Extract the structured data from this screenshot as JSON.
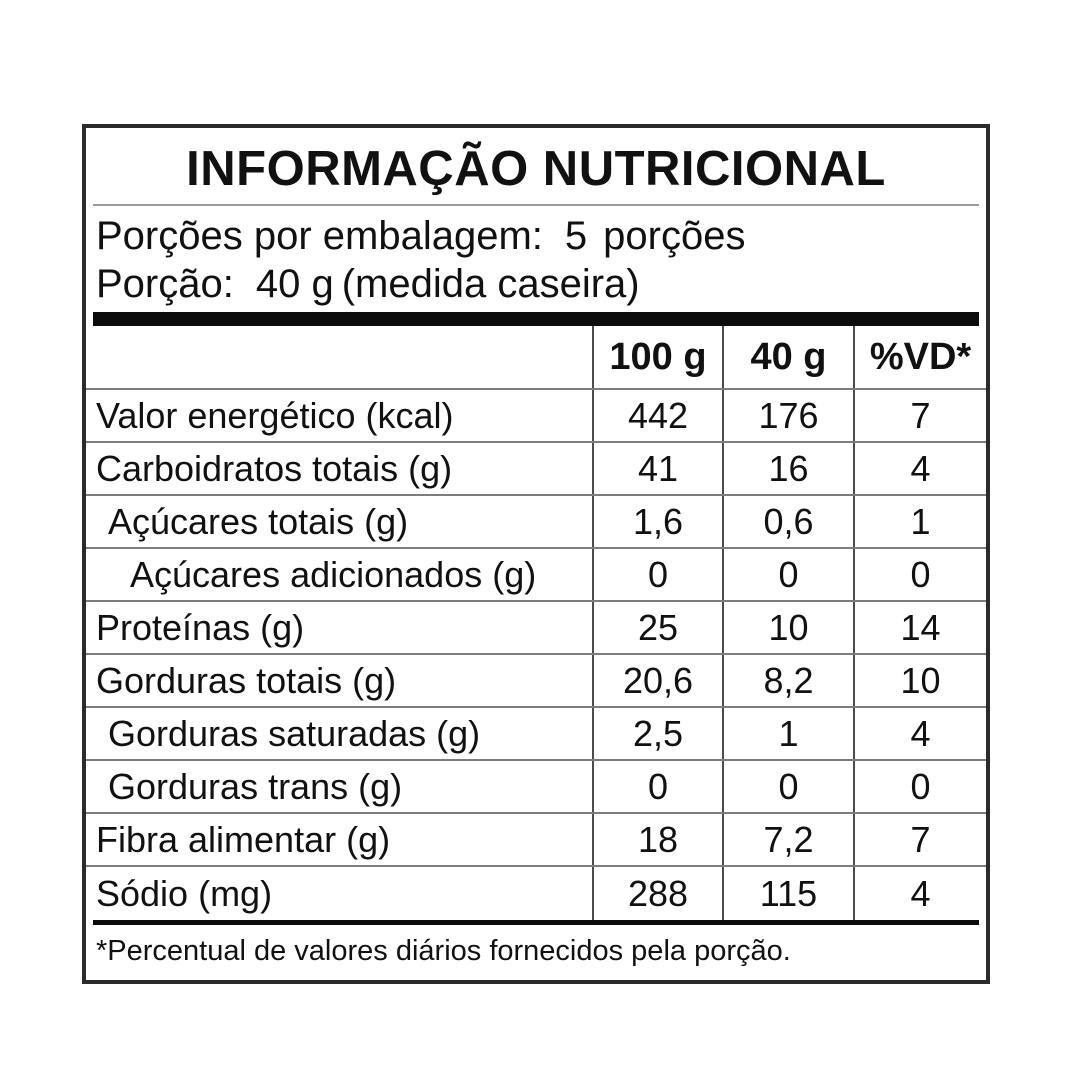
{
  "title": "INFORMAÇÃO NUTRICIONAL",
  "servings": {
    "label": "Porções por embalagem:",
    "count": "5",
    "unit": "porções"
  },
  "portion": {
    "label": "Porção:",
    "amount": "40 g",
    "detail": "(medida caseira)"
  },
  "table": {
    "columns": [
      "100 g",
      "40 g",
      "%VD*"
    ],
    "rows": [
      {
        "label": "Valor energético (kcal)",
        "indent": 0,
        "per100": "442",
        "per40": "176",
        "vd": "7"
      },
      {
        "label": "Carboidratos totais (g)",
        "indent": 0,
        "per100": "41",
        "per40": "16",
        "vd": "4"
      },
      {
        "label": "Açúcares totais (g)",
        "indent": 1,
        "per100": "1,6",
        "per40": "0,6",
        "vd": "1"
      },
      {
        "label": "Açúcares adicionados (g)",
        "indent": 2,
        "per100": "0",
        "per40": "0",
        "vd": "0"
      },
      {
        "label": "Proteínas (g)",
        "indent": 0,
        "per100": "25",
        "per40": "10",
        "vd": "14"
      },
      {
        "label": "Gorduras totais (g)",
        "indent": 0,
        "per100": "20,6",
        "per40": "8,2",
        "vd": "10"
      },
      {
        "label": "Gorduras saturadas (g)",
        "indent": 1,
        "per100": "2,5",
        "per40": "1",
        "vd": "4"
      },
      {
        "label": "Gorduras trans (g)",
        "indent": 1,
        "per100": "0",
        "per40": "0",
        "vd": "0"
      },
      {
        "label": "Fibra alimentar (g)",
        "indent": 0,
        "per100": "18",
        "per40": "7,2",
        "vd": "7"
      },
      {
        "label": "Sódio (mg)",
        "indent": 0,
        "per100": "288",
        "per40": "115",
        "vd": "4"
      }
    ]
  },
  "footnote": "*Percentual de valores diários fornecidos pela porção.",
  "colors": {
    "background": "#ffffff",
    "text": "#111111",
    "panel_border": "#2b2b2b",
    "header_bar": "#0c0c0c",
    "row_separator": "#7d7d7d",
    "column_separator": "#4d4d4d",
    "title_rule": "#9a9a9a"
  }
}
